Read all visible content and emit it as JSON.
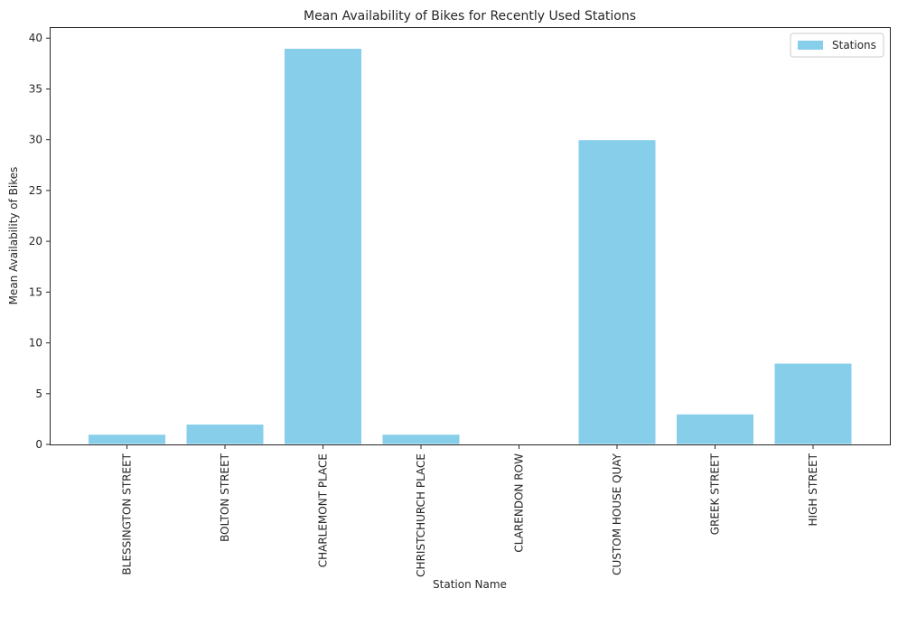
{
  "chart_data": {
    "type": "bar",
    "title": "Mean Availability of Bikes for Recently Used Stations",
    "xlabel": "Station Name",
    "ylabel": "Mean Availability of Bikes",
    "categories": [
      "BLESSINGTON STREET",
      "BOLTON STREET",
      "CHARLEMONT PLACE",
      "CHRISTCHURCH PLACE",
      "CLARENDON ROW",
      "CUSTOM HOUSE QUAY",
      "GREEK STREET",
      "HIGH STREET"
    ],
    "series": [
      {
        "name": "Stations",
        "values": [
          1,
          2,
          39,
          1,
          0,
          30,
          3,
          8
        ]
      }
    ],
    "ylim": [
      0,
      41
    ],
    "yticks": [
      0,
      5,
      10,
      15,
      20,
      25,
      30,
      35,
      40
    ],
    "grid": false,
    "legend": {
      "position": "top-right"
    },
    "colors": {
      "bar": "#87ceeb",
      "axes": "#262626",
      "text": "#262626"
    }
  }
}
